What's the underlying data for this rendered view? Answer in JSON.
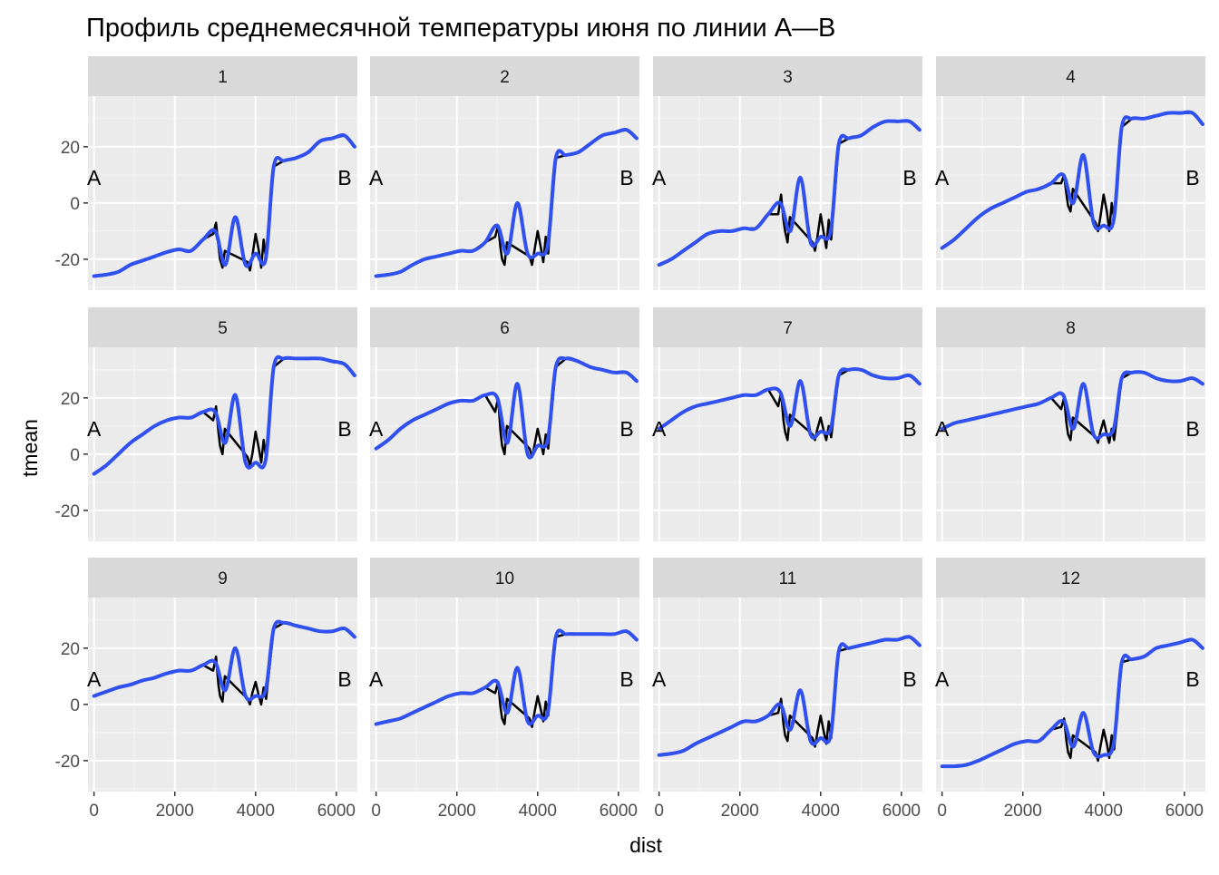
{
  "chart_data": {
    "type": "line",
    "title": "Профиль среднемесячной температуры июня по линии А—В",
    "xlabel": "dist",
    "ylabel": "tmean",
    "xlim": [
      -150,
      6520
    ],
    "ylim": [
      -31,
      38
    ],
    "x_ticks": [
      0,
      2000,
      4000,
      6000
    ],
    "x_tick_labels": [
      "0",
      "2000",
      "4000",
      "6000"
    ],
    "y_ticks": [
      -20,
      0,
      20
    ],
    "y_tick_labels": [
      "-20",
      "0",
      "20"
    ],
    "grid": true,
    "layout": "facet_wrap 3 rows x 4 columns",
    "end_labels": {
      "start": "A",
      "end": "B",
      "y": 9
    },
    "series_styles": [
      {
        "role": "raw",
        "color": "#000000"
      },
      {
        "role": "smoothed",
        "color": "#3050f0"
      }
    ],
    "x": [
      0,
      300,
      600,
      900,
      1200,
      1500,
      1800,
      2100,
      2400,
      2700,
      3000,
      3250,
      3500,
      3750,
      4000,
      4250,
      4450,
      4700,
      5000,
      5300,
      5600,
      5900,
      6200,
      6450
    ],
    "panels": [
      {
        "label": "1",
        "smooth": [
          -26,
          -25.5,
          -24.5,
          -22,
          -20.5,
          -19,
          -17.5,
          -16.5,
          -17,
          -13,
          -10,
          -22,
          -5,
          -22,
          -18,
          -20,
          13,
          15,
          16,
          18,
          22,
          23,
          24,
          20
        ],
        "raw": [
          [
            2950,
            -11
          ],
          [
            3020,
            -7
          ],
          [
            3080,
            -15
          ],
          [
            3120,
            -20
          ],
          [
            3180,
            -23
          ],
          [
            3240,
            -17
          ],
          [
            3800,
            -21
          ],
          [
            3860,
            -24
          ],
          [
            3920,
            -19
          ],
          [
            4000,
            -11
          ],
          [
            4080,
            -17
          ],
          [
            4140,
            -23
          ],
          [
            4200,
            -13
          ],
          [
            4260,
            -20
          ]
        ]
      },
      {
        "label": "2",
        "smooth": [
          -26,
          -25.5,
          -24.5,
          -22,
          -20,
          -19,
          -18,
          -17,
          -17,
          -14,
          -8,
          -18,
          0,
          -18,
          -18,
          -15,
          16,
          17,
          18,
          21,
          24,
          25,
          26,
          23
        ],
        "raw": [
          [
            2950,
            -12
          ],
          [
            3020,
            -8
          ],
          [
            3080,
            -16
          ],
          [
            3120,
            -20
          ],
          [
            3180,
            -22
          ],
          [
            3240,
            -14
          ],
          [
            3800,
            -19
          ],
          [
            3860,
            -22
          ],
          [
            3920,
            -17
          ],
          [
            4000,
            -10
          ],
          [
            4080,
            -16
          ],
          [
            4140,
            -21
          ],
          [
            4200,
            -12
          ],
          [
            4260,
            -18
          ]
        ]
      },
      {
        "label": "3",
        "smooth": [
          -22,
          -20,
          -17,
          -14,
          -11,
          -10,
          -10,
          -9,
          -9,
          -4,
          0,
          -10,
          9,
          -14,
          -12,
          -10,
          21,
          23,
          24,
          27,
          29,
          29,
          29,
          26
        ],
        "raw": [
          [
            2950,
            -4
          ],
          [
            3020,
            3
          ],
          [
            3080,
            -6
          ],
          [
            3120,
            -10
          ],
          [
            3180,
            -14
          ],
          [
            3240,
            -5
          ],
          [
            3800,
            -14
          ],
          [
            3860,
            -17
          ],
          [
            3920,
            -12
          ],
          [
            4000,
            -4
          ],
          [
            4080,
            -11
          ],
          [
            4140,
            -16
          ],
          [
            4200,
            -6
          ],
          [
            4260,
            -13
          ]
        ]
      },
      {
        "label": "4",
        "smooth": [
          -16,
          -13,
          -9,
          -5,
          -2,
          0,
          2,
          4,
          5,
          7,
          10,
          0,
          17,
          -7,
          -8,
          -6,
          27,
          30,
          30,
          31,
          32,
          32,
          32,
          28
        ],
        "raw": [
          [
            2950,
            7
          ],
          [
            3020,
            10
          ],
          [
            3080,
            3
          ],
          [
            3120,
            -1
          ],
          [
            3180,
            -3
          ],
          [
            3240,
            5
          ],
          [
            3800,
            -7
          ],
          [
            3860,
            -10
          ],
          [
            3920,
            -5
          ],
          [
            4000,
            3
          ],
          [
            4080,
            -3
          ],
          [
            4140,
            -10
          ],
          [
            4200,
            0
          ],
          [
            4260,
            -6
          ]
        ]
      },
      {
        "label": "5",
        "smooth": [
          -7,
          -4,
          0,
          4,
          7,
          10,
          12,
          13,
          13,
          15,
          15,
          4,
          21,
          -3,
          -3,
          -2,
          31,
          34,
          34,
          34,
          34,
          33,
          32,
          28
        ],
        "raw": [
          [
            2950,
            12
          ],
          [
            3020,
            17
          ],
          [
            3080,
            8
          ],
          [
            3120,
            3
          ],
          [
            3180,
            0
          ],
          [
            3240,
            9
          ],
          [
            3800,
            -1
          ],
          [
            3860,
            -4
          ],
          [
            3920,
            0
          ],
          [
            4000,
            8
          ],
          [
            4080,
            2
          ],
          [
            4140,
            -3
          ],
          [
            4200,
            5
          ],
          [
            4260,
            -1
          ]
        ]
      },
      {
        "label": "6",
        "smooth": [
          2,
          5,
          9,
          12,
          14,
          16,
          18,
          19,
          19,
          21,
          20,
          4,
          25,
          0,
          3,
          5,
          31,
          34,
          33,
          31,
          30,
          29,
          29,
          26
        ],
        "raw": [
          [
            2950,
            15
          ],
          [
            3020,
            20
          ],
          [
            3080,
            8
          ],
          [
            3120,
            3
          ],
          [
            3180,
            0
          ],
          [
            3240,
            10
          ],
          [
            3800,
            2
          ],
          [
            3860,
            -1
          ],
          [
            3920,
            3
          ],
          [
            4000,
            9
          ],
          [
            4080,
            4
          ],
          [
            4140,
            0
          ],
          [
            4200,
            7
          ],
          [
            4260,
            2
          ]
        ]
      },
      {
        "label": "7",
        "smooth": [
          9,
          12,
          15,
          17,
          18,
          19,
          20,
          21,
          21,
          23,
          22,
          10,
          26,
          7,
          8,
          9,
          28,
          30,
          30,
          28,
          27,
          27,
          28,
          25
        ],
        "raw": [
          [
            2950,
            17
          ],
          [
            3020,
            22
          ],
          [
            3080,
            12
          ],
          [
            3120,
            8
          ],
          [
            3180,
            5
          ],
          [
            3240,
            14
          ],
          [
            3800,
            7
          ],
          [
            3860,
            5
          ],
          [
            3920,
            9
          ],
          [
            4000,
            13
          ],
          [
            4080,
            8
          ],
          [
            4140,
            5
          ],
          [
            4200,
            10
          ],
          [
            4260,
            6
          ]
        ]
      },
      {
        "label": "8",
        "smooth": [
          9,
          11,
          12,
          13,
          14,
          15,
          16,
          17,
          18,
          20,
          21,
          9,
          25,
          7,
          7,
          9,
          27,
          29,
          29,
          27,
          26,
          26,
          27,
          25
        ],
        "raw": [
          [
            2950,
            16
          ],
          [
            3020,
            20
          ],
          [
            3080,
            11
          ],
          [
            3120,
            7
          ],
          [
            3180,
            5
          ],
          [
            3240,
            13
          ],
          [
            3800,
            6
          ],
          [
            3860,
            4
          ],
          [
            3920,
            8
          ],
          [
            4000,
            12
          ],
          [
            4080,
            7
          ],
          [
            4140,
            4
          ],
          [
            4200,
            9
          ],
          [
            4260,
            5
          ]
        ]
      },
      {
        "label": "9",
        "smooth": [
          3,
          4.5,
          6,
          7,
          8.5,
          9.5,
          11,
          12,
          12,
          14,
          15,
          5,
          20,
          3,
          3,
          5,
          27,
          29,
          28,
          27,
          26,
          26,
          27,
          24
        ],
        "raw": [
          [
            2950,
            12
          ],
          [
            3020,
            17
          ],
          [
            3080,
            7
          ],
          [
            3120,
            3
          ],
          [
            3180,
            1
          ],
          [
            3240,
            10
          ],
          [
            3800,
            2
          ],
          [
            3860,
            0
          ],
          [
            3920,
            4
          ],
          [
            4000,
            8
          ],
          [
            4080,
            3
          ],
          [
            4140,
            0
          ],
          [
            4200,
            6
          ],
          [
            4260,
            2
          ]
        ]
      },
      {
        "label": "10",
        "smooth": [
          -7,
          -6,
          -5,
          -3,
          -1,
          1,
          3,
          4,
          4,
          6,
          8,
          -3,
          13,
          -6,
          -4,
          -3,
          24,
          25,
          25,
          25,
          25,
          25,
          26,
          23
        ],
        "raw": [
          [
            2950,
            4
          ],
          [
            3020,
            8
          ],
          [
            3080,
            -1
          ],
          [
            3120,
            -5
          ],
          [
            3180,
            -7
          ],
          [
            3240,
            2
          ],
          [
            3800,
            -5
          ],
          [
            3860,
            -8
          ],
          [
            3920,
            -3
          ],
          [
            4000,
            3
          ],
          [
            4080,
            -2
          ],
          [
            4140,
            -6
          ],
          [
            4200,
            1
          ],
          [
            4260,
            -4
          ]
        ]
      },
      {
        "label": "11",
        "smooth": [
          -18,
          -17.5,
          -16.5,
          -14,
          -12,
          -10,
          -8,
          -6,
          -6,
          -4,
          0,
          -9,
          5,
          -13,
          -12,
          -11,
          19,
          20,
          21,
          22,
          23,
          23,
          24,
          21
        ],
        "raw": [
          [
            2950,
            -3
          ],
          [
            3020,
            2
          ],
          [
            3080,
            -7
          ],
          [
            3120,
            -11
          ],
          [
            3180,
            -13
          ],
          [
            3240,
            -4
          ],
          [
            3800,
            -12
          ],
          [
            3860,
            -15
          ],
          [
            3920,
            -10
          ],
          [
            4000,
            -4
          ],
          [
            4080,
            -10
          ],
          [
            4140,
            -14
          ],
          [
            4200,
            -6
          ],
          [
            4260,
            -12
          ]
        ]
      },
      {
        "label": "12",
        "smooth": [
          -22,
          -22,
          -21.5,
          -20,
          -18,
          -16,
          -14,
          -13,
          -13,
          -9,
          -6,
          -15,
          -3,
          -17,
          -18,
          -14,
          15,
          16,
          17,
          20,
          21,
          22,
          23,
          20
        ],
        "raw": [
          [
            2950,
            -8
          ],
          [
            3020,
            -5
          ],
          [
            3080,
            -13
          ],
          [
            3120,
            -17
          ],
          [
            3180,
            -19
          ],
          [
            3240,
            -11
          ],
          [
            3800,
            -17
          ],
          [
            3860,
            -20
          ],
          [
            3920,
            -15
          ],
          [
            4000,
            -9
          ],
          [
            4080,
            -14
          ],
          [
            4140,
            -19
          ],
          [
            4200,
            -11
          ],
          [
            4260,
            -16
          ]
        ]
      }
    ]
  }
}
